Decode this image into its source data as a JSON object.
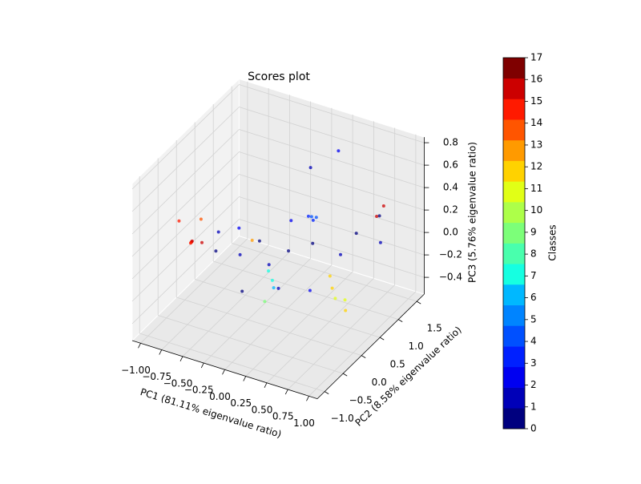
{
  "chart_data": {
    "type": "scatter3d",
    "title": "Scores plot",
    "x_label": "PC1 (81.11% eigenvalue ratio)",
    "y_label": "PC2 (8.58% eigenvalue ratio)",
    "z_label": "PC3 (5.76% eigenvalue ratio)",
    "xlim": [
      -1.1,
      1.1
    ],
    "ylim": [
      -1.2,
      1.7
    ],
    "zlim": [
      -0.55,
      0.85
    ],
    "xticks": [
      {
        "value": -1,
        "label": "−1.00"
      },
      {
        "value": -0.75,
        "label": "−0.75"
      },
      {
        "value": -0.5,
        "label": "−0.50"
      },
      {
        "value": -0.25,
        "label": "−0.25"
      },
      {
        "value": 0,
        "label": "0.00"
      },
      0.25,
      {
        "value": 0.5,
        "label": "0.50"
      },
      0.75,
      {
        "value": 1,
        "label": "1.00"
      }
    ],
    "yticks": [
      {
        "value": -1,
        "label": "−1.0"
      },
      {
        "value": -0.5,
        "label": "−0.5"
      },
      {
        "value": 0,
        "label": "0.0"
      },
      0.5,
      {
        "value": 1,
        "label": "1.0"
      },
      1.5
    ],
    "zticks": [
      {
        "value": -0.4,
        "label": "−0.4"
      },
      {
        "value": -0.2,
        "label": "−0.2"
      },
      {
        "value": 0,
        "label": "0.0"
      },
      0.2,
      0.4,
      0.6,
      0.8
    ],
    "grid": true,
    "x": [
      -0.7,
      -0.75,
      -0.65,
      -0.8,
      -0.6,
      -0.85,
      -0.72,
      -0.5,
      -0.3,
      -0.2,
      0.0,
      0.1,
      -0.4,
      0.2,
      0.3,
      0.5,
      0.6,
      0.8,
      -0.1,
      0.4,
      0.7,
      -0.6,
      0.0,
      0.25,
      0.3,
      0.35,
      0.2,
      0.62,
      0.7,
      0.55,
      0.75,
      0.8,
      0.04,
      0.1,
      -0.05,
      -0.05,
      -0.2,
      0.71,
      0.75,
      0.3,
      0.1
    ],
    "y": [
      -0.5,
      -0.4,
      -0.6,
      -0.3,
      -0.45,
      -0.5,
      -0.2,
      -0.3,
      -0.1,
      0.2,
      0.0,
      0.3,
      0.1,
      -0.2,
      0.5,
      0.8,
      1.0,
      1.2,
      -0.5,
      0.2,
      1.4,
      0.0,
      0.6,
      0.5,
      0.6,
      0.4,
      0.7,
      0.3,
      0.2,
      0.4,
      0.35,
      0.25,
      0.0,
      -0.1,
      0.1,
      0.0,
      0.0,
      1.3,
      1.4,
      1.2,
      0.9
    ],
    "z": [
      0.2,
      0.15,
      0.25,
      0.1,
      0.2,
      0.35,
      0.3,
      0.1,
      0.05,
      0.1,
      0.0,
      0.05,
      0.2,
      -0.1,
      0.1,
      -0.05,
      0.1,
      0.0,
      -0.1,
      -0.2,
      0.15,
      0.15,
      0.2,
      0.33,
      0.3,
      0.35,
      0.25,
      -0.16,
      -0.2,
      -0.1,
      -0.25,
      -0.3,
      -0.13,
      -0.15,
      -0.1,
      -0.34,
      0.17,
      0.18,
      0.25,
      0.7,
      0.6
    ],
    "classes": [
      16,
      15,
      16,
      15,
      16,
      15,
      14,
      0,
      1,
      0,
      1,
      0,
      2,
      1,
      0,
      1,
      0,
      1,
      0,
      2,
      0,
      1,
      2,
      3,
      4,
      3,
      4,
      12,
      11,
      12,
      11,
      12,
      7,
      6,
      7,
      9,
      13,
      16,
      16,
      2,
      1
    ],
    "colorbar": {
      "label": "Classes",
      "lim": [
        0,
        17
      ],
      "ticks": [
        0,
        1,
        2,
        3,
        4,
        5,
        6,
        7,
        8,
        9,
        10,
        11,
        12,
        13,
        14,
        15,
        16,
        17
      ],
      "colors": [
        "#00007f",
        "#0000b8",
        "#0000f1",
        "#0020ff",
        "#0050ff",
        "#0084ff",
        "#00b8ff",
        "#16ffe1",
        "#49ffad",
        "#7cff79",
        "#adff49",
        "#e1ff16",
        "#ffd200",
        "#ff9a00",
        "#ff5500",
        "#ff1a00",
        "#cc0000",
        "#7f0000"
      ]
    }
  }
}
